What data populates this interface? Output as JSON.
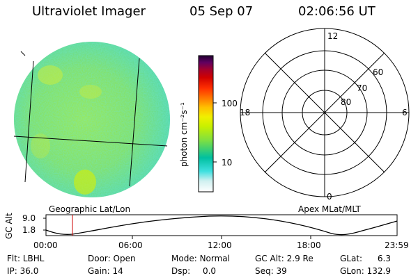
{
  "header": {
    "instrument": "Ultraviolet Imager",
    "date": "05 Sep 07",
    "time": "02:06:56 UT"
  },
  "image_panel": {
    "label": "Geographic Lat/Lon"
  },
  "colorbar": {
    "unit_label": "photon cm⁻²s⁻¹",
    "ticks": [
      "100",
      "10"
    ],
    "colors": [
      "#ffffff",
      "#d0f0f0",
      "#40e0e0",
      "#00c0a0",
      "#80e040",
      "#c8f000",
      "#f0f000",
      "#ffc000",
      "#ff8000",
      "#ff3000",
      "#d00000",
      "#a00030",
      "#600060",
      "#200030"
    ]
  },
  "polar_grid": {
    "label": "Apex MLat/MLT",
    "mlt_labels": {
      "top": "12",
      "left": "18",
      "right": "6",
      "bottom": "0"
    },
    "lat_labels": [
      "60",
      "70",
      "80"
    ]
  },
  "altitude_plot": {
    "ylabel": "GC Alt",
    "yticks": [
      "9.0",
      "1.8"
    ],
    "xticks": [
      "00:00",
      "06:00",
      "12:00",
      "18:00",
      "23:59"
    ]
  },
  "info": {
    "row1": [
      {
        "label": "Flt:",
        "value": "LBHL"
      },
      {
        "label": "Door:",
        "value": "Open"
      },
      {
        "label": "Mode:",
        "value": "Normal"
      },
      {
        "label": "GC Alt:",
        "value": "2.9 Re"
      },
      {
        "label": "GLat:",
        "value": "6.3"
      }
    ],
    "row2": [
      {
        "label": "IP:",
        "value": "36.0"
      },
      {
        "label": "Gain:",
        "value": "14"
      },
      {
        "label": "Dsp:",
        "value": "0.0"
      },
      {
        "label": "Seq:",
        "value": "39"
      },
      {
        "label": "GLon:",
        "value": "132.9"
      }
    ]
  }
}
